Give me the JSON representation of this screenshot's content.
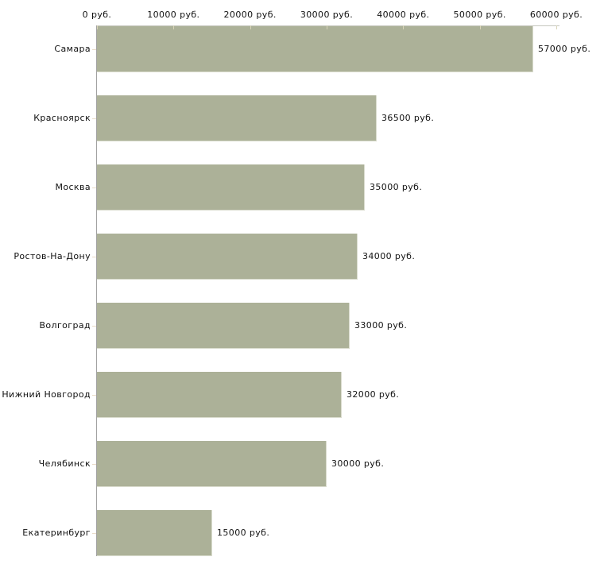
{
  "chart_data": {
    "type": "bar",
    "orientation": "horizontal",
    "unit": "руб.",
    "xlim": [
      0,
      60000
    ],
    "x_ticks": [
      0,
      10000,
      20000,
      30000,
      40000,
      50000,
      60000
    ],
    "x_tick_labels": [
      "0 руб.",
      "10000 руб.",
      "20000 руб.",
      "30000 руб.",
      "40000 руб.",
      "50000 руб.",
      "60000 руб."
    ],
    "categories": [
      "Самара",
      "Красноярск",
      "Москва",
      "Ростов-На-Дону",
      "Волгоград",
      "Нижний Новгород",
      "Челябинск",
      "Екатеринбург"
    ],
    "values": [
      57000,
      36500,
      35000,
      34000,
      33000,
      32000,
      30000,
      15000
    ],
    "value_labels": [
      "57000 руб.",
      "36500 руб.",
      "35000 руб.",
      "34000 руб.",
      "33000 руб.",
      "32000 руб.",
      "30000 руб.",
      "15000 руб."
    ],
    "grid": false,
    "legend": false,
    "colors": {
      "bar": "#acb198",
      "bar_edge": "#dadcce",
      "x_axis_line": "#c5c6bd",
      "y_axis_line": "#a2a2a2",
      "x_tick": "#d8d4b9",
      "y_tick": "#e9dcc9",
      "text": "#111111",
      "background": "#ffffff"
    }
  }
}
